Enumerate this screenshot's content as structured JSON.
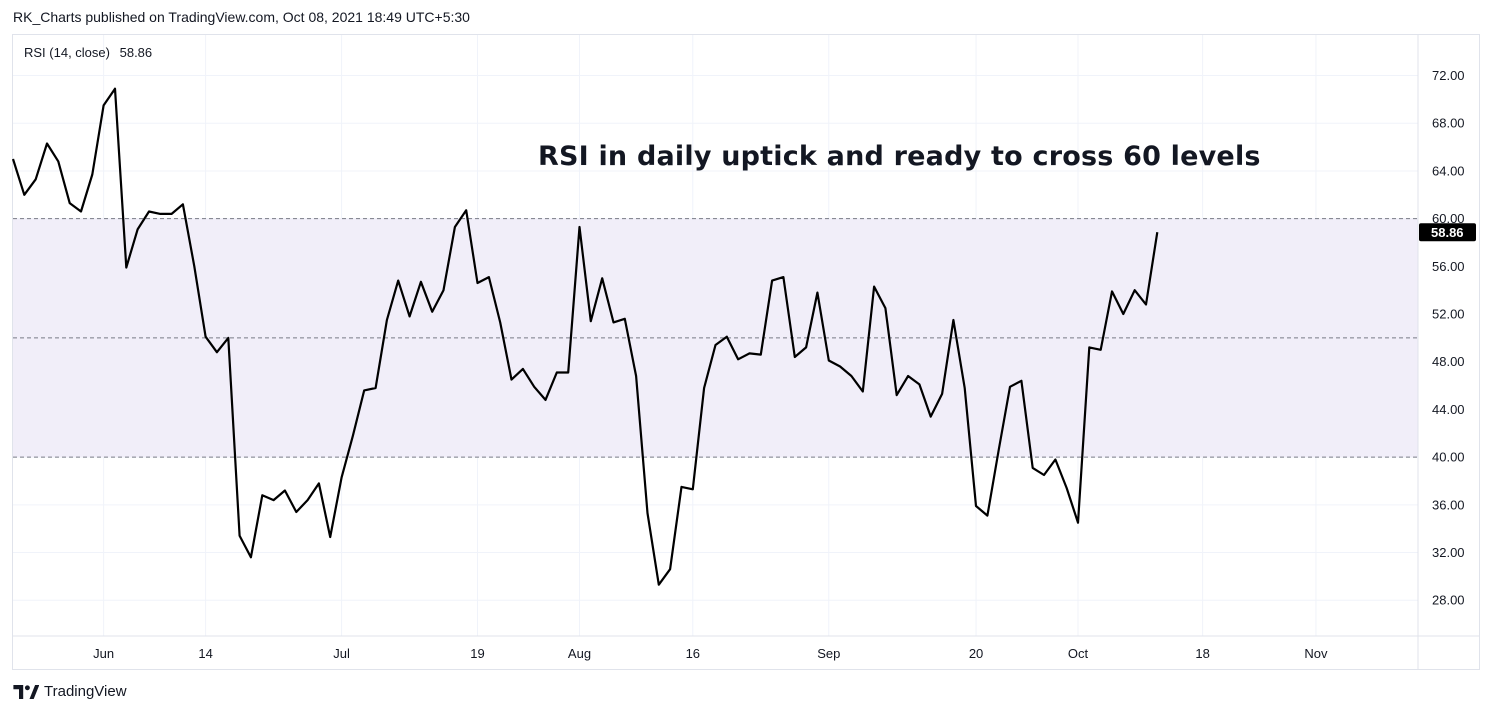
{
  "header": {
    "text": "RK_Charts published on TradingView.com, Oct 08, 2021 18:49 UTC+5:30"
  },
  "legend": {
    "name": "RSI (14, close)",
    "value": "58.86"
  },
  "annotation": "RSI in daily uptick and ready to cross 60 levels",
  "footer": {
    "brand": "TradingView"
  },
  "colors": {
    "line": "#000000",
    "band_fill": "#f1eef9",
    "grid": "#f0f3fa",
    "level_line": "#787b86",
    "badge_bg": "#000000",
    "badge_text": "#ffffff"
  },
  "chart_data": {
    "type": "line",
    "title": "",
    "xlabel": "",
    "ylabel": "",
    "ylim": [
      25,
      75.4
    ],
    "yticks": [
      "28.00",
      "32.00",
      "36.00",
      "40.00",
      "44.00",
      "48.00",
      "52.00",
      "56.00",
      "60.00",
      "64.00",
      "68.00",
      "72.00"
    ],
    "xticks": [
      {
        "label": "Jun",
        "index": 8
      },
      {
        "label": "14",
        "index": 17
      },
      {
        "label": "Jul",
        "index": 29
      },
      {
        "label": "19",
        "index": 41
      },
      {
        "label": "Aug",
        "index": 50
      },
      {
        "label": "16",
        "index": 60
      },
      {
        "label": "Sep",
        "index": 72
      },
      {
        "label": "20",
        "index": 85
      },
      {
        "label": "Oct",
        "index": 94
      },
      {
        "label": "18",
        "index": 105
      },
      {
        "label": "Nov",
        "index": 115
      }
    ],
    "levels": [
      {
        "value": 60,
        "style": "dashed"
      },
      {
        "value": 50,
        "style": "dashed"
      },
      {
        "value": 40,
        "style": "dashed"
      }
    ],
    "band": [
      40,
      60
    ],
    "last_value_label": "58.86",
    "series": [
      {
        "values": [
          65.0,
          62.0,
          63.3,
          66.3,
          64.8,
          61.3,
          60.6,
          63.7,
          69.5,
          70.9,
          55.9,
          59.1,
          60.6,
          60.4,
          60.4,
          61.2,
          56.0,
          50.1,
          48.8,
          50.0,
          33.4,
          31.6,
          36.8,
          36.4,
          37.2,
          35.4,
          36.4,
          37.8,
          33.3,
          38.3,
          41.8,
          45.6,
          45.8,
          51.5,
          54.8,
          51.8,
          54.7,
          52.2,
          54.0,
          59.3,
          60.7,
          54.6,
          55.1,
          51.3,
          46.5,
          47.4,
          45.9,
          44.8,
          47.1,
          47.1,
          59.3,
          51.4,
          55.0,
          51.3,
          51.6,
          46.8,
          35.3,
          29.3,
          30.6,
          37.5,
          37.3,
          45.8,
          49.4,
          50.1,
          48.2,
          48.7,
          48.6,
          54.8,
          55.1,
          48.4,
          49.2,
          53.8,
          48.1,
          47.6,
          46.8,
          45.5,
          54.3,
          52.5,
          45.2,
          46.8,
          46.1,
          43.4,
          45.3,
          51.5,
          45.8,
          35.9,
          35.1,
          40.6,
          45.9,
          46.4,
          39.1,
          38.5,
          39.8,
          37.4,
          34.5,
          49.2,
          49.0,
          53.9,
          52.0,
          54.0,
          52.8,
          58.86
        ]
      }
    ]
  }
}
